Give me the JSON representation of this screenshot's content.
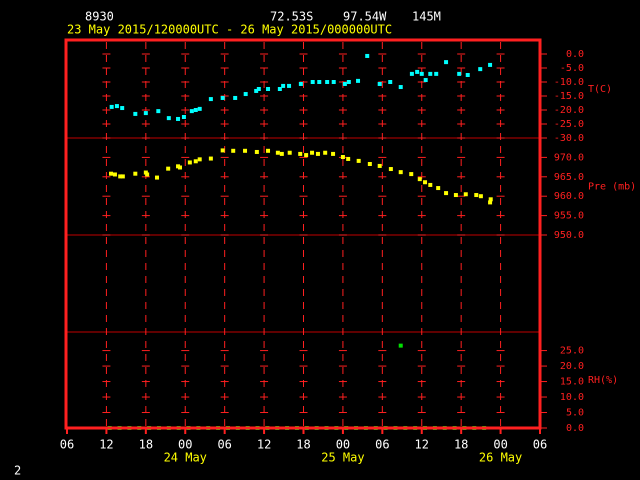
{
  "chart_data": {
    "type": "scatter",
    "station": "8930",
    "latitude": "72.53S",
    "longitude": "97.54W",
    "elevation": "145M",
    "period": "23 May 2015/120000UTC - 26 May 2015/000000UTC",
    "page_number": "2",
    "xlim": [
      6,
      78
    ],
    "xticks": [
      {
        "value": 6,
        "label": "06"
      },
      {
        "value": 12,
        "label": "12"
      },
      {
        "value": 18,
        "label": "18"
      },
      {
        "value": 24,
        "label": "00"
      },
      {
        "value": 30,
        "label": "06"
      },
      {
        "value": 36,
        "label": "12"
      },
      {
        "value": 42,
        "label": "18"
      },
      {
        "value": 48,
        "label": "00"
      },
      {
        "value": 54,
        "label": "06"
      },
      {
        "value": 60,
        "label": "12"
      },
      {
        "value": 66,
        "label": "18"
      },
      {
        "value": 72,
        "label": "00"
      },
      {
        "value": 78,
        "label": "06"
      }
    ],
    "day_labels": [
      {
        "value": 24,
        "label": "24 May"
      },
      {
        "value": 48,
        "label": "25 May"
      },
      {
        "value": 72,
        "label": "26 May"
      }
    ],
    "panels": [
      {
        "label": "T(C)",
        "color": "#00ffff",
        "ylim": [
          -30,
          5
        ],
        "yticks": [
          {
            "value": 0,
            "label": "0.0"
          },
          {
            "value": -5,
            "label": "-5.0"
          },
          {
            "value": -10,
            "label": "-10.0"
          },
          {
            "value": -15,
            "label": "-15.0"
          },
          {
            "value": -20,
            "label": "-20.0"
          },
          {
            "value": -25,
            "label": "-25.0"
          },
          {
            "value": -30,
            "label": "-30.0"
          }
        ],
        "x": [
          12.8,
          13.6,
          14.4,
          16.4,
          18.0,
          19.9,
          21.5,
          22.9,
          23.8,
          25.0,
          25.6,
          26.2,
          27.9,
          29.7,
          31.6,
          33.2,
          34.8,
          35.2,
          36.6,
          38.4,
          38.9,
          39.8,
          41.6,
          43.4,
          44.4,
          45.6,
          46.6,
          48.3,
          48.9,
          50.3,
          51.7,
          53.6,
          55.2,
          56.8,
          58.5,
          59.3,
          60.0,
          60.6,
          61.3,
          62.2,
          63.7,
          65.7,
          67.0,
          68.9,
          70.4
        ],
        "values": [
          -18.9,
          -18.6,
          -19.3,
          -21.4,
          -21.1,
          -20.4,
          -22.9,
          -23.2,
          -22.5,
          -20.4,
          -20.0,
          -19.6,
          -16.1,
          -15.7,
          -15.7,
          -14.3,
          -13.2,
          -12.5,
          -12.5,
          -12.5,
          -11.4,
          -11.4,
          -10.7,
          -10.0,
          -10.0,
          -10.0,
          -10.0,
          -10.7,
          -10.0,
          -9.6,
          -0.7,
          -10.7,
          -10.0,
          -11.8,
          -7.1,
          -6.4,
          -7.1,
          -9.3,
          -7.1,
          -7.1,
          -2.9,
          -7.1,
          -7.5,
          -5.4,
          -3.9
        ]
      },
      {
        "label": "Pre (mb)",
        "color": "#ffff00",
        "ylim": [
          950,
          975
        ],
        "yticks": [
          {
            "value": 970,
            "label": "970.0"
          },
          {
            "value": 965,
            "label": "965.0"
          },
          {
            "value": 960,
            "label": "960.0"
          },
          {
            "value": 955,
            "label": "955.0"
          },
          {
            "value": 950,
            "label": "950.0"
          }
        ],
        "x": [
          12.7,
          13.3,
          14.1,
          14.5,
          16.4,
          18.0,
          18.2,
          19.7,
          21.4,
          22.9,
          23.2,
          24.7,
          25.6,
          26.2,
          27.9,
          29.7,
          31.3,
          33.1,
          34.9,
          36.6,
          38.1,
          38.7,
          39.9,
          41.5,
          42.4,
          43.3,
          44.2,
          45.3,
          46.5,
          48.0,
          48.8,
          50.4,
          52.1,
          53.6,
          55.3,
          56.8,
          58.4,
          59.7,
          60.5,
          61.3,
          62.5,
          63.7,
          65.2,
          66.7,
          68.3,
          69.0,
          70.4,
          70.5
        ],
        "values": [
          965.8,
          965.6,
          965.1,
          965.1,
          965.8,
          966.1,
          965.6,
          964.8,
          967.1,
          967.7,
          967.4,
          968.7,
          969.0,
          969.5,
          969.7,
          971.8,
          971.7,
          971.7,
          971.4,
          971.7,
          971.2,
          970.9,
          971.2,
          970.9,
          970.6,
          971.2,
          970.9,
          971.2,
          970.9,
          970.1,
          969.6,
          969.1,
          968.3,
          967.8,
          967.0,
          966.2,
          965.7,
          964.4,
          963.6,
          962.9,
          962.1,
          960.8,
          960.3,
          960.5,
          960.3,
          960.0,
          958.4,
          959.2
        ]
      },
      {
        "label": "RH(%)",
        "color": "#00e000",
        "ylim": [
          0,
          31
        ],
        "yticks": [
          {
            "value": 25,
            "label": "25.0"
          },
          {
            "value": 20,
            "label": "20.0"
          },
          {
            "value": 15,
            "label": "15.0"
          },
          {
            "value": 10,
            "label": "10.0"
          },
          {
            "value": 5,
            "label": "5.0"
          },
          {
            "value": 0,
            "label": "0.0"
          }
        ],
        "x": [
          12.5,
          14,
          15.5,
          17,
          18.5,
          20,
          21.5,
          23,
          24.5,
          26,
          27.5,
          29,
          30.5,
          32,
          33.5,
          35,
          36.5,
          38,
          39.5,
          41,
          42.5,
          44,
          45.5,
          47,
          48.5,
          50,
          51.5,
          53,
          54.5,
          56,
          56.8,
          57.5,
          59,
          60.5,
          62,
          63.5,
          65,
          66.5,
          68,
          69.5
        ],
        "values": [
          0,
          0,
          0,
          0,
          0,
          0,
          0,
          0,
          0,
          0,
          0,
          0,
          0,
          0,
          0,
          0,
          0,
          0,
          0,
          0,
          0,
          0,
          0,
          0,
          0,
          0,
          0,
          0,
          0,
          0,
          26.6,
          0,
          0,
          0,
          0,
          0,
          0,
          0,
          0,
          0
        ]
      }
    ]
  }
}
